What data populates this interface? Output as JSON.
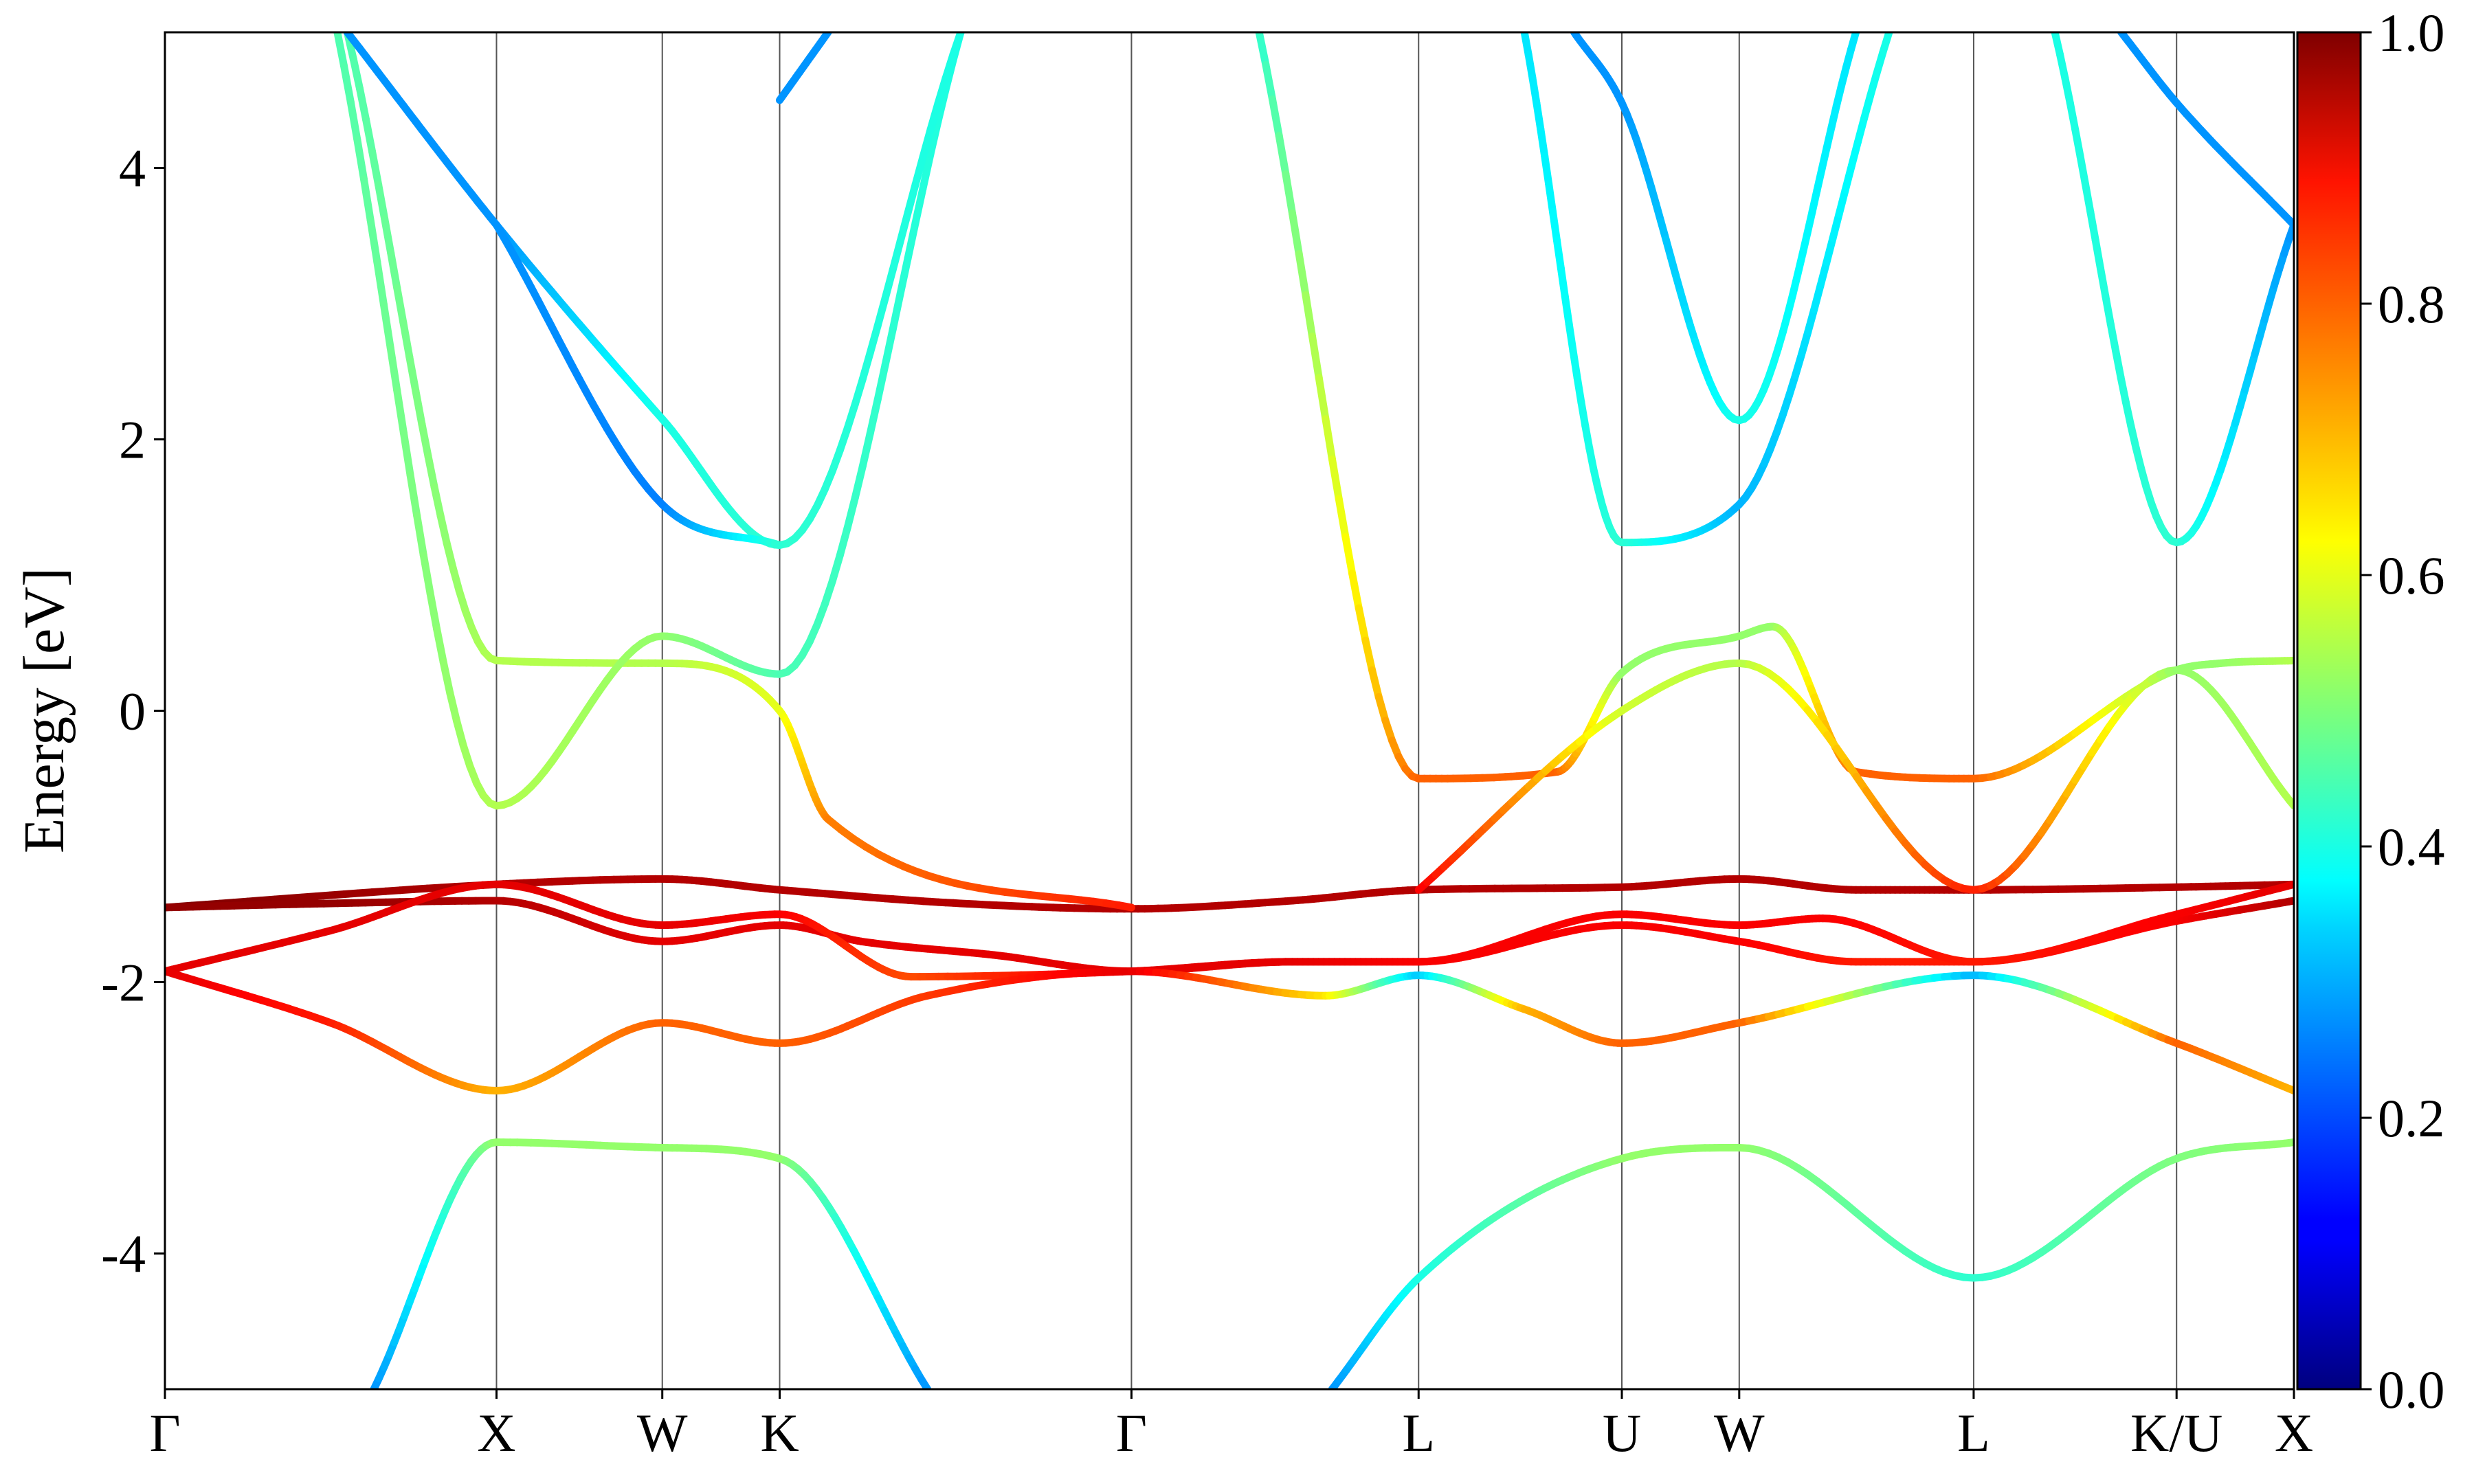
{
  "chart_data": {
    "type": "line",
    "title": "",
    "xlabel": "",
    "ylabel": "Energy [eV]",
    "ylim": [
      -5,
      5
    ],
    "yticks": [
      "4",
      "2",
      "0",
      "-2",
      "-4"
    ],
    "ytick_values": [
      4,
      2,
      0,
      -2,
      -4
    ],
    "grid": false,
    "high_symmetry_points": [
      {
        "label": "Γ",
        "k": 0.0
      },
      {
        "label": "X",
        "k": 1.0
      },
      {
        "label": "W",
        "k": 1.5
      },
      {
        "label": "K",
        "k": 1.854
      },
      {
        "label": "Γ",
        "k": 2.915
      },
      {
        "label": "L",
        "k": 3.781
      },
      {
        "label": "U",
        "k": 4.394
      },
      {
        "label": "W",
        "k": 4.748
      },
      {
        "label": "L",
        "k": 5.455
      },
      {
        "label": "K/U",
        "k": 6.067
      },
      {
        "label": "X",
        "k": 6.421
      }
    ],
    "colorbar": {
      "colormap": "jet",
      "range": [
        0.0,
        1.0
      ],
      "ticks": [
        "0.0",
        "0.2",
        "0.4",
        "0.6",
        "0.8",
        "1.0"
      ],
      "tick_values": [
        0.0,
        0.2,
        0.4,
        0.6,
        0.8,
        1.0
      ]
    },
    "series": [
      {
        "points": [
          [
            0.0,
            -1.45,
            1.0
          ],
          [
            1.0,
            -1.28,
            0.95
          ],
          [
            1.5,
            -1.24,
            0.95
          ],
          [
            1.854,
            -1.32,
            0.95
          ],
          [
            2.4,
            -1.42,
            0.95
          ],
          [
            2.915,
            -1.46,
            0.95
          ],
          [
            3.4,
            -1.4,
            0.95
          ],
          [
            3.781,
            -1.32,
            0.95
          ],
          [
            4.394,
            -1.3,
            0.95
          ],
          [
            4.748,
            -1.24,
            0.95
          ],
          [
            5.1,
            -1.32,
            0.95
          ],
          [
            5.455,
            -1.32,
            0.95
          ],
          [
            6.067,
            -1.3,
            0.95
          ],
          [
            6.421,
            -1.28,
            0.95
          ]
        ]
      },
      {
        "points": [
          [
            0.0,
            -1.45,
            0.98
          ],
          [
            0.5,
            -1.42,
            0.98
          ],
          [
            1.0,
            -1.4,
            0.95
          ],
          [
            1.5,
            -1.7,
            0.9
          ],
          [
            1.854,
            -1.58,
            0.9
          ],
          [
            2.1,
            -1.7,
            0.9
          ],
          [
            2.5,
            -1.8,
            0.9
          ],
          [
            2.915,
            -1.92,
            0.9
          ],
          [
            3.4,
            -1.85,
            0.9
          ],
          [
            3.781,
            -1.85,
            0.88
          ],
          [
            4.394,
            -1.58,
            0.88
          ],
          [
            4.748,
            -1.7,
            0.88
          ],
          [
            5.1,
            -1.85,
            0.85
          ],
          [
            5.455,
            -1.85,
            0.85
          ],
          [
            6.067,
            -1.55,
            0.88
          ],
          [
            6.421,
            -1.4,
            0.95
          ]
        ]
      },
      {
        "points": [
          [
            0.0,
            -1.92,
            0.9
          ],
          [
            0.5,
            -1.62,
            0.9
          ],
          [
            1.0,
            -1.28,
            0.9
          ],
          [
            1.5,
            -1.58,
            0.9
          ],
          [
            1.854,
            -1.5,
            0.88
          ],
          [
            2.25,
            -1.96,
            0.8
          ],
          [
            2.915,
            -1.92,
            0.9
          ],
          [
            3.4,
            -1.85,
            0.9
          ],
          [
            3.781,
            -1.85,
            0.88
          ],
          [
            4.394,
            -1.5,
            0.88
          ],
          [
            4.748,
            -1.58,
            0.88
          ],
          [
            5.0,
            -1.53,
            0.88
          ],
          [
            5.455,
            -1.85,
            0.85
          ],
          [
            6.067,
            -1.5,
            0.88
          ],
          [
            6.421,
            -1.28,
            0.9
          ]
        ]
      },
      {
        "points": [
          [
            0.0,
            -1.92,
            0.9
          ],
          [
            0.5,
            -2.3,
            0.85
          ],
          [
            1.0,
            -2.8,
            0.7
          ],
          [
            1.5,
            -2.3,
            0.78
          ],
          [
            1.854,
            -2.45,
            0.78
          ],
          [
            2.3,
            -2.1,
            0.82
          ],
          [
            2.915,
            -1.92,
            0.9
          ],
          [
            3.5,
            -2.1,
            0.65
          ],
          [
            3.781,
            -1.95,
            0.32
          ],
          [
            4.1,
            -2.2,
            0.7
          ],
          [
            4.394,
            -2.45,
            0.78
          ],
          [
            4.748,
            -2.3,
            0.78
          ],
          [
            5.455,
            -1.95,
            0.3
          ],
          [
            6.067,
            -2.45,
            0.78
          ],
          [
            6.421,
            -2.8,
            0.7
          ]
        ]
      },
      {
        "points": [
          [
            0.63,
            -5.0,
            0.27
          ],
          [
            1.0,
            -3.18,
            0.52
          ],
          [
            1.5,
            -3.22,
            0.52
          ],
          [
            1.854,
            -3.3,
            0.52
          ],
          [
            2.3,
            -5.0,
            0.27
          ]
        ]
      },
      {
        "points": [
          [
            3.52,
            -5.0,
            0.27
          ],
          [
            3.781,
            -4.18,
            0.4
          ],
          [
            4.394,
            -3.3,
            0.52
          ],
          [
            4.748,
            -3.22,
            0.52
          ],
          [
            5.455,
            -4.18,
            0.42
          ],
          [
            6.067,
            -3.3,
            0.5
          ],
          [
            6.421,
            -3.18,
            0.52
          ]
        ]
      },
      {
        "points": [
          [
            0.55,
            5.0,
            0.45
          ],
          [
            1.0,
            0.37,
            0.55
          ],
          [
            1.5,
            0.35,
            0.55
          ],
          [
            1.854,
            0.0,
            0.6
          ],
          [
            2.0,
            -0.8,
            0.75
          ],
          [
            2.915,
            -1.45,
            0.85
          ]
        ]
      },
      {
        "points": [
          [
            0.52,
            5.0,
            0.45
          ],
          [
            1.0,
            -0.7,
            0.55
          ],
          [
            1.5,
            0.55,
            0.52
          ],
          [
            1.854,
            0.27,
            0.45
          ],
          [
            2.4,
            5.0,
            0.4
          ]
        ]
      },
      {
        "points": [
          [
            3.3,
            5.0,
            0.42
          ],
          [
            3.781,
            -0.5,
            0.78
          ],
          [
            4.2,
            -0.45,
            0.78
          ],
          [
            4.394,
            0.28,
            0.52
          ],
          [
            4.748,
            0.55,
            0.52
          ],
          [
            4.85,
            0.62,
            0.52
          ],
          [
            5.1,
            -0.45,
            0.78
          ],
          [
            5.455,
            -0.5,
            0.78
          ],
          [
            6.067,
            0.3,
            0.52
          ],
          [
            6.2,
            0.35,
            0.52
          ],
          [
            6.421,
            0.37,
            0.55
          ]
        ]
      },
      {
        "points": [
          [
            3.781,
            -1.32,
            0.88
          ],
          [
            4.394,
            0.0,
            0.58
          ],
          [
            4.748,
            0.35,
            0.55
          ],
          [
            5.455,
            -1.32,
            0.85
          ],
          [
            6.067,
            0.3,
            0.52
          ],
          [
            6.421,
            -0.7,
            0.55
          ]
        ]
      },
      {
        "points": [
          [
            0.55,
            5.0,
            0.27
          ],
          [
            1.0,
            3.58,
            0.27
          ],
          [
            1.5,
            2.15,
            0.4
          ],
          [
            1.854,
            1.22,
            0.42
          ],
          [
            2.4,
            5.0,
            0.4
          ]
        ]
      },
      {
        "points": [
          [
            1.0,
            3.58,
            0.27
          ],
          [
            1.5,
            1.52,
            0.25
          ],
          [
            1.854,
            1.22,
            0.42
          ]
        ]
      },
      {
        "points": [
          [
            1.854,
            4.5,
            0.27
          ],
          [
            2.0,
            5.0,
            0.27
          ]
        ]
      },
      {
        "points": [
          [
            4.1,
            5.0,
            0.35
          ],
          [
            4.394,
            1.24,
            0.42
          ],
          [
            4.748,
            1.52,
            0.3
          ],
          [
            5.2,
            5.0,
            0.4
          ]
        ]
      },
      {
        "points": [
          [
            4.25,
            5.0,
            0.27
          ],
          [
            4.394,
            4.48,
            0.27
          ],
          [
            4.748,
            2.14,
            0.4
          ],
          [
            5.1,
            5.0,
            0.35
          ]
        ]
      },
      {
        "points": [
          [
            5.7,
            5.0,
            0.4
          ],
          [
            6.067,
            1.24,
            0.42
          ],
          [
            6.421,
            3.58,
            0.27
          ]
        ]
      },
      {
        "points": [
          [
            5.9,
            5.0,
            0.27
          ],
          [
            6.067,
            4.48,
            0.27
          ],
          [
            6.421,
            3.58,
            0.27
          ]
        ]
      }
    ]
  }
}
